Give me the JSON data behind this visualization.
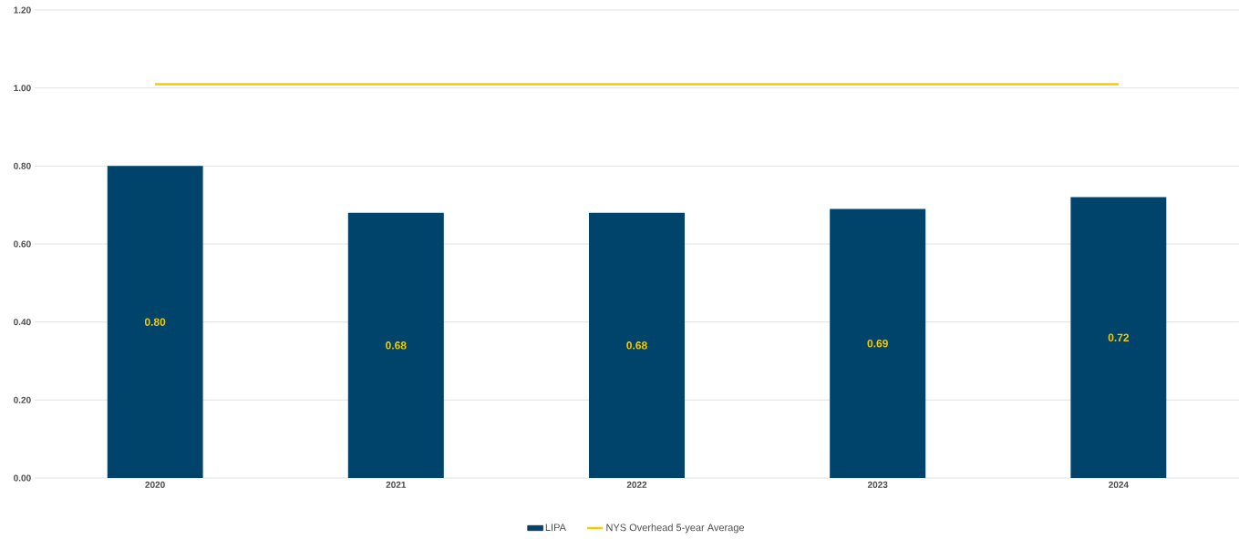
{
  "chart_data": {
    "type": "bar",
    "categories": [
      "2020",
      "2021",
      "2022",
      "2023",
      "2024"
    ],
    "series": [
      {
        "name": "LIPA",
        "color": "#00436b",
        "values": [
          0.8,
          0.68,
          0.68,
          0.69,
          0.72
        ],
        "value_labels": [
          "0.80",
          "0.68",
          "0.68",
          "0.69",
          "0.72"
        ]
      },
      {
        "name": "NYS Overhead 5-year Average",
        "type": "line",
        "color": "#f5cc00",
        "values": [
          1.01,
          1.01,
          1.01,
          1.01,
          1.01
        ]
      }
    ],
    "ylim": [
      0,
      1.2
    ],
    "yticks": [
      {
        "value": 0,
        "label": "0.00"
      },
      {
        "value": 0.2,
        "label": "0.20"
      },
      {
        "value": 0.4,
        "label": "0.40"
      },
      {
        "value": 0.6,
        "label": "0.60"
      },
      {
        "value": 0.8,
        "label": "0.80"
      },
      {
        "value": 1.0,
        "label": "1.00"
      },
      {
        "value": 1.2,
        "label": "1.20"
      }
    ],
    "grid": "y",
    "legend": "bottom"
  }
}
